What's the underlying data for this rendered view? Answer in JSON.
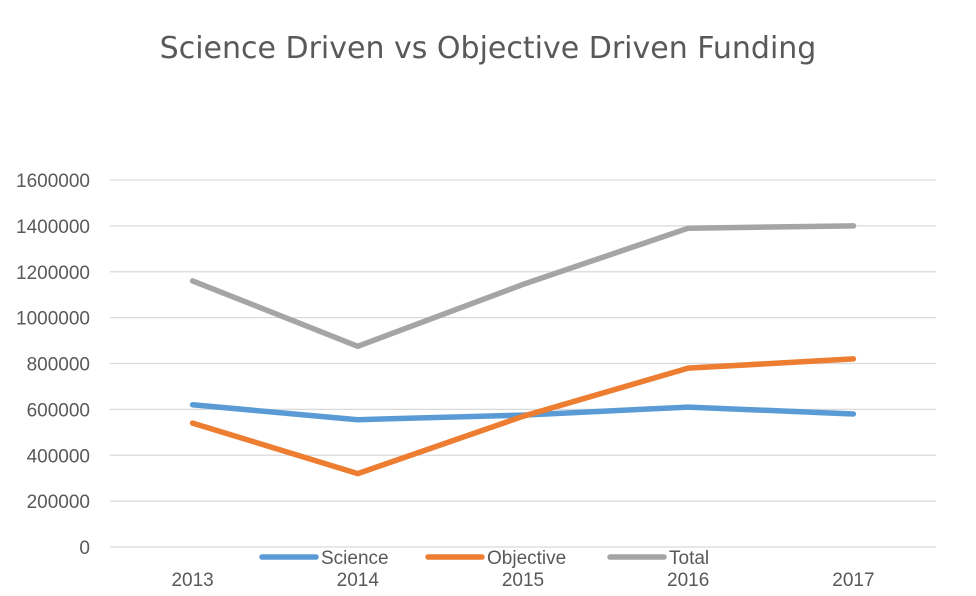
{
  "chart_data": {
    "type": "line",
    "title": "Science Driven vs Objective Driven Funding",
    "xlabel": "",
    "ylabel": "",
    "categories": [
      "2013",
      "2014",
      "2015",
      "2016",
      "2017"
    ],
    "ylim": [
      0,
      1600000
    ],
    "yticks": [
      "0",
      "200000",
      "400000",
      "600000",
      "800000",
      "1000000",
      "1200000",
      "1400000",
      "1600000"
    ],
    "grid": true,
    "legend_position": "bottom",
    "series": [
      {
        "name": "Science",
        "color": "#5b9bd5",
        "values": [
          620000,
          555000,
          575000,
          610000,
          580000
        ]
      },
      {
        "name": "Objective",
        "color": "#ed7d31",
        "values": [
          540000,
          320000,
          570000,
          780000,
          820000
        ]
      },
      {
        "name": "Total",
        "color": "#a5a5a5",
        "values": [
          1160000,
          875000,
          1145000,
          1390000,
          1400000
        ]
      }
    ]
  }
}
